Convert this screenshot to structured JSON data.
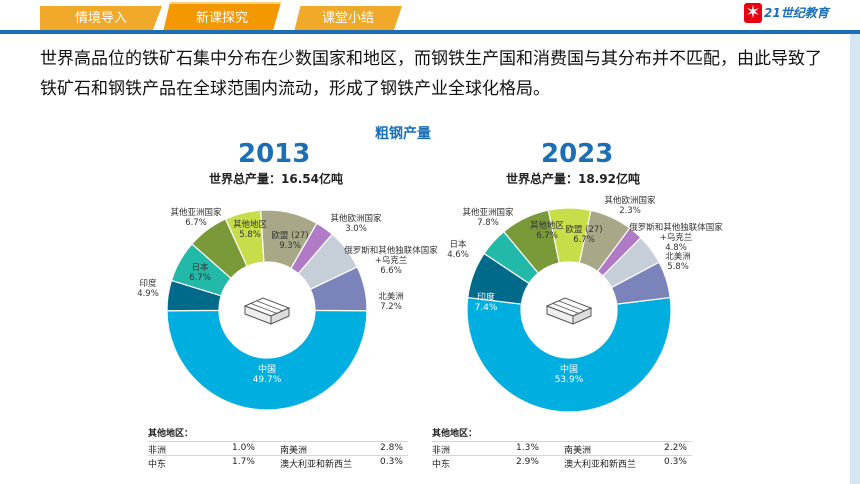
{
  "header": {
    "tabs": [
      {
        "label": "情境导入"
      },
      {
        "label": "新课探究"
      },
      {
        "label": "课堂小结"
      }
    ],
    "logo_text": "21世纪教育"
  },
  "intro": "世界高品位的铁矿石集中分布在少数国家和地区，而钢铁生产国和消费国与其分布并不匹配，由此导致了铁矿石和钢铁产品在全球范围内流动，形成了钢铁产业全球化格局。",
  "colors": {
    "china": "#00aee0",
    "india": "#006a8a",
    "japan": "#22b9a8",
    "other_asia": "#7a9a3a",
    "other_region": "#c8dd4a",
    "eu": "#a8a888",
    "other_europe": "#b07ac6",
    "cis": "#c6ced8",
    "north_america": "#7a84bb",
    "accent": "#1c6fb5"
  },
  "chart_data": [
    {
      "type": "pie",
      "title": "粗钢产量",
      "year": "2013",
      "total_label": "世界总产量：16.54亿吨",
      "slices": [
        {
          "name": "中国",
          "value": 49.7,
          "label": "49.7%"
        },
        {
          "name": "印度",
          "value": 4.9,
          "label": "4.9%"
        },
        {
          "name": "日本",
          "value": 6.7,
          "label": "6.7%"
        },
        {
          "name": "其他亚洲国家",
          "value": 6.7,
          "label": "6.7%"
        },
        {
          "name": "其他地区",
          "value": 5.8,
          "label": "5.8%"
        },
        {
          "name": "欧盟 (27)",
          "value": 9.3,
          "label": "9.3%"
        },
        {
          "name": "其他欧洲国家",
          "value": 3.0,
          "label": "3.0%"
        },
        {
          "name": "俄罗斯和其他独联体国家+乌克兰",
          "value": 6.6,
          "label": "6.6%"
        },
        {
          "name": "北美洲",
          "value": 7.2,
          "label": "7.2%"
        }
      ],
      "other_regions": {
        "heading": "其他地区：",
        "items": [
          {
            "name": "非洲",
            "value": "1.0%"
          },
          {
            "name": "南美洲",
            "value": "2.8%"
          },
          {
            "name": "中东",
            "value": "1.7%"
          },
          {
            "name": "澳大利亚和新西兰",
            "value": "0.3%"
          }
        ]
      }
    },
    {
      "type": "pie",
      "year": "2023",
      "total_label": "世界总产量：18.92亿吨",
      "slices": [
        {
          "name": "中国",
          "value": 53.9,
          "label": "53.9%"
        },
        {
          "name": "印度",
          "value": 7.4,
          "label": "7.4%"
        },
        {
          "name": "日本",
          "value": 4.6,
          "label": "4.6%"
        },
        {
          "name": "其他亚洲国家",
          "value": 7.8,
          "label": "7.8%"
        },
        {
          "name": "其他地区",
          "value": 6.7,
          "label": "6.7%"
        },
        {
          "name": "欧盟 (27)",
          "value": 6.7,
          "label": "6.7%"
        },
        {
          "name": "其他欧洲国家",
          "value": 2.3,
          "label": "2.3%"
        },
        {
          "name": "俄罗斯和其他独联体国家+乌克兰",
          "value": 4.8,
          "label": "4.8%"
        },
        {
          "name": "北美洲",
          "value": 5.8,
          "label": "5.8%"
        }
      ],
      "other_regions": {
        "heading": "其他地区：",
        "items": [
          {
            "name": "非洲",
            "value": "1.3%"
          },
          {
            "name": "南美洲",
            "value": "2.2%"
          },
          {
            "name": "中东",
            "value": "2.9%"
          },
          {
            "name": "澳大利亚和新西兰",
            "value": "0.3%"
          }
        ]
      }
    }
  ]
}
